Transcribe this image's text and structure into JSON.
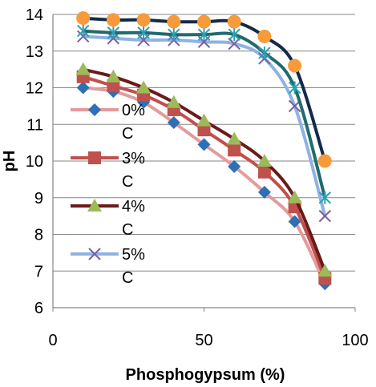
{
  "chart_data": {
    "type": "line",
    "title": "",
    "xlabel": "Phosphogypsum (%)",
    "ylabel": "pH",
    "xlim": [
      0,
      100
    ],
    "ylim": [
      6,
      14
    ],
    "xticks": [
      0,
      50,
      100
    ],
    "yticks": [
      6,
      7,
      8,
      9,
      10,
      11,
      12,
      13,
      14
    ],
    "grid": "horizontal",
    "legend": "inside-left",
    "legend_entries": [
      {
        "label": "0%",
        "label2": "C",
        "series_index": 0
      },
      {
        "label": "3%",
        "label2": "C",
        "series_index": 1
      },
      {
        "label": "4%",
        "label2": "C",
        "series_index": 2
      },
      {
        "label": "5%",
        "label2": "C",
        "series_index": 3
      }
    ],
    "series": [
      {
        "values": [
          {
            "x": 10,
            "y": 12.0
          },
          {
            "x": 20,
            "y": 11.9
          },
          {
            "x": 30,
            "y": 11.6
          },
          {
            "x": 40,
            "y": 11.05
          },
          {
            "x": 50,
            "y": 10.45
          },
          {
            "x": 60,
            "y": 9.85
          },
          {
            "x": 70,
            "y": 9.15
          },
          {
            "x": 80,
            "y": 8.35
          },
          {
            "x": 90,
            "y": 6.65
          }
        ],
        "line_color": "#e69a9a",
        "marker_color": "#2e6fb5",
        "marker": "diamond"
      },
      {
        "values": [
          {
            "x": 10,
            "y": 12.3
          },
          {
            "x": 20,
            "y": 12.05
          },
          {
            "x": 30,
            "y": 11.8
          },
          {
            "x": 40,
            "y": 11.4
          },
          {
            "x": 50,
            "y": 10.85
          },
          {
            "x": 60,
            "y": 10.3
          },
          {
            "x": 70,
            "y": 9.7
          },
          {
            "x": 80,
            "y": 8.75
          },
          {
            "x": 90,
            "y": 6.8
          }
        ],
        "line_color": "#c0504d",
        "marker_color": "#c0504d",
        "marker": "square"
      },
      {
        "values": [
          {
            "x": 10,
            "y": 12.5
          },
          {
            "x": 20,
            "y": 12.3
          },
          {
            "x": 30,
            "y": 12.0
          },
          {
            "x": 40,
            "y": 11.6
          },
          {
            "x": 50,
            "y": 11.1
          },
          {
            "x": 60,
            "y": 10.6
          },
          {
            "x": 70,
            "y": 10.0
          },
          {
            "x": 80,
            "y": 9.0
          },
          {
            "x": 90,
            "y": 7.0
          }
        ],
        "line_color": "#6b1a1a",
        "marker_color": "#9bbb59",
        "marker": "triangle"
      },
      {
        "values": [
          {
            "x": 10,
            "y": 13.4
          },
          {
            "x": 20,
            "y": 13.35
          },
          {
            "x": 30,
            "y": 13.3
          },
          {
            "x": 40,
            "y": 13.3
          },
          {
            "x": 50,
            "y": 13.25
          },
          {
            "x": 60,
            "y": 13.2
          },
          {
            "x": 70,
            "y": 12.8
          },
          {
            "x": 80,
            "y": 11.5
          },
          {
            "x": 90,
            "y": 8.5
          }
        ],
        "line_color": "#8db3e2",
        "marker_color": "#7c5ea3",
        "marker": "x"
      },
      {
        "values": [
          {
            "x": 10,
            "y": 13.55
          },
          {
            "x": 20,
            "y": 13.5
          },
          {
            "x": 30,
            "y": 13.5
          },
          {
            "x": 40,
            "y": 13.45
          },
          {
            "x": 50,
            "y": 13.45
          },
          {
            "x": 60,
            "y": 13.45
          },
          {
            "x": 70,
            "y": 12.95
          },
          {
            "x": 80,
            "y": 12.0
          },
          {
            "x": 90,
            "y": 9.0
          }
        ],
        "line_color": "#216a6e",
        "marker_color": "#2aa0b4",
        "marker": "star"
      },
      {
        "values": [
          {
            "x": 10,
            "y": 13.9
          },
          {
            "x": 20,
            "y": 13.85
          },
          {
            "x": 30,
            "y": 13.85
          },
          {
            "x": 40,
            "y": 13.8
          },
          {
            "x": 50,
            "y": 13.8
          },
          {
            "x": 60,
            "y": 13.8
          },
          {
            "x": 70,
            "y": 13.4
          },
          {
            "x": 80,
            "y": 12.6
          },
          {
            "x": 90,
            "y": 10.0
          }
        ],
        "line_color": "#132a4a",
        "marker_color": "#f79a3a",
        "marker": "circle"
      }
    ]
  }
}
